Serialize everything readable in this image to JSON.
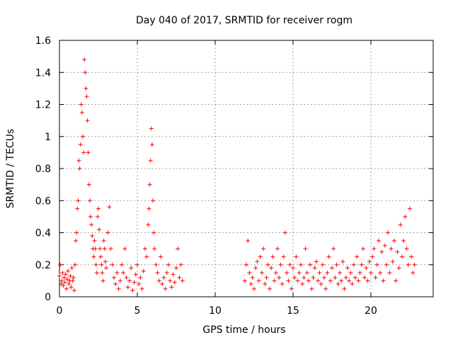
{
  "chart_data": {
    "type": "scatter",
    "title": "Day 040 of 2017, SRMTID for receiver rogm",
    "xlabel": "GPS time / hours",
    "ylabel": "SRMTID / TECUs",
    "xlim": [
      0,
      24
    ],
    "ylim": [
      0,
      1.6
    ],
    "x_ticks": [
      0,
      5,
      10,
      15,
      20
    ],
    "x_tick_labels": [
      "0",
      "5",
      "10",
      "15",
      "20"
    ],
    "y_ticks": [
      0,
      0.2,
      0.4,
      0.6,
      0.8,
      1.0,
      1.2,
      1.4,
      1.6
    ],
    "y_tick_labels": [
      "0",
      "0.2",
      "0.4",
      "0.6",
      "0.8",
      "1",
      "1.2",
      "1.4",
      "1.6"
    ],
    "grid": true,
    "marker": "+",
    "series": [
      {
        "name": "SRMTID",
        "color": "#ff0000",
        "points": [
          [
            0.0,
            0.13
          ],
          [
            0.05,
            0.2
          ],
          [
            0.1,
            0.08
          ],
          [
            0.15,
            0.1
          ],
          [
            0.2,
            0.15
          ],
          [
            0.25,
            0.07
          ],
          [
            0.3,
            0.12
          ],
          [
            0.35,
            0.09
          ],
          [
            0.4,
            0.14
          ],
          [
            0.45,
            0.05
          ],
          [
            0.5,
            0.11
          ],
          [
            0.55,
            0.16
          ],
          [
            0.6,
            0.08
          ],
          [
            0.65,
            0.1
          ],
          [
            0.7,
            0.13
          ],
          [
            0.75,
            0.06
          ],
          [
            0.8,
            0.18
          ],
          [
            0.85,
            0.1
          ],
          [
            0.9,
            0.12
          ],
          [
            0.95,
            0.04
          ],
          [
            1.0,
            0.2
          ],
          [
            1.05,
            0.35
          ],
          [
            1.1,
            0.4
          ],
          [
            1.15,
            0.55
          ],
          [
            1.2,
            0.6
          ],
          [
            1.25,
            0.85
          ],
          [
            1.3,
            0.8
          ],
          [
            1.35,
            0.95
          ],
          [
            1.4,
            1.2
          ],
          [
            1.45,
            1.15
          ],
          [
            1.5,
            1.0
          ],
          [
            1.55,
            0.9
          ],
          [
            1.6,
            1.48
          ],
          [
            1.65,
            1.4
          ],
          [
            1.7,
            1.3
          ],
          [
            1.75,
            1.25
          ],
          [
            1.8,
            1.1
          ],
          [
            1.85,
            0.9
          ],
          [
            1.9,
            0.7
          ],
          [
            1.95,
            0.6
          ],
          [
            2.0,
            0.5
          ],
          [
            2.05,
            0.45
          ],
          [
            2.1,
            0.38
          ],
          [
            2.15,
            0.3
          ],
          [
            2.2,
            0.25
          ],
          [
            2.25,
            0.35
          ],
          [
            2.3,
            0.3
          ],
          [
            2.35,
            0.2
          ],
          [
            2.4,
            0.15
          ],
          [
            2.45,
            0.5
          ],
          [
            2.5,
            0.55
          ],
          [
            2.55,
            0.42
          ],
          [
            2.6,
            0.3
          ],
          [
            2.65,
            0.25
          ],
          [
            2.7,
            0.2
          ],
          [
            2.75,
            0.15
          ],
          [
            2.8,
            0.1
          ],
          [
            2.85,
            0.35
          ],
          [
            2.9,
            0.3
          ],
          [
            2.95,
            0.22
          ],
          [
            3.0,
            0.18
          ],
          [
            3.1,
            0.4
          ],
          [
            3.2,
            0.56
          ],
          [
            3.3,
            0.3
          ],
          [
            3.4,
            0.2
          ],
          [
            3.5,
            0.12
          ],
          [
            3.6,
            0.08
          ],
          [
            3.7,
            0.15
          ],
          [
            3.8,
            0.05
          ],
          [
            3.9,
            0.1
          ],
          [
            4.0,
            0.2
          ],
          [
            4.1,
            0.15
          ],
          [
            4.2,
            0.3
          ],
          [
            4.3,
            0.12
          ],
          [
            4.4,
            0.06
          ],
          [
            4.5,
            0.1
          ],
          [
            4.6,
            0.18
          ],
          [
            4.7,
            0.04
          ],
          [
            4.8,
            0.09
          ],
          [
            4.9,
            0.14
          ],
          [
            5.0,
            0.2
          ],
          [
            5.1,
            0.08
          ],
          [
            5.2,
            0.12
          ],
          [
            5.3,
            0.05
          ],
          [
            5.4,
            0.16
          ],
          [
            5.5,
            0.3
          ],
          [
            5.6,
            0.25
          ],
          [
            5.7,
            0.45
          ],
          [
            5.75,
            0.55
          ],
          [
            5.8,
            0.7
          ],
          [
            5.85,
            0.85
          ],
          [
            5.9,
            1.05
          ],
          [
            5.95,
            0.95
          ],
          [
            6.0,
            0.6
          ],
          [
            6.05,
            0.4
          ],
          [
            6.1,
            0.3
          ],
          [
            6.2,
            0.2
          ],
          [
            6.3,
            0.15
          ],
          [
            6.4,
            0.1
          ],
          [
            6.5,
            0.25
          ],
          [
            6.6,
            0.08
          ],
          [
            6.7,
            0.12
          ],
          [
            6.8,
            0.05
          ],
          [
            6.9,
            0.15
          ],
          [
            7.0,
            0.2
          ],
          [
            7.1,
            0.1
          ],
          [
            7.2,
            0.06
          ],
          [
            7.3,
            0.14
          ],
          [
            7.4,
            0.09
          ],
          [
            7.5,
            0.18
          ],
          [
            7.6,
            0.3
          ],
          [
            7.7,
            0.12
          ],
          [
            7.8,
            0.2
          ],
          [
            7.9,
            0.1
          ],
          [
            11.9,
            0.1
          ],
          [
            12.0,
            0.2
          ],
          [
            12.1,
            0.35
          ],
          [
            12.2,
            0.15
          ],
          [
            12.3,
            0.08
          ],
          [
            12.4,
            0.12
          ],
          [
            12.5,
            0.05
          ],
          [
            12.6,
            0.18
          ],
          [
            12.7,
            0.22
          ],
          [
            12.8,
            0.1
          ],
          [
            12.9,
            0.25
          ],
          [
            13.0,
            0.15
          ],
          [
            13.1,
            0.3
          ],
          [
            13.2,
            0.08
          ],
          [
            13.3,
            0.12
          ],
          [
            13.4,
            0.2
          ],
          [
            13.5,
            0.05
          ],
          [
            13.6,
            0.18
          ],
          [
            13.7,
            0.25
          ],
          [
            13.8,
            0.1
          ],
          [
            13.9,
            0.15
          ],
          [
            14.0,
            0.3
          ],
          [
            14.1,
            0.12
          ],
          [
            14.2,
            0.2
          ],
          [
            14.3,
            0.08
          ],
          [
            14.4,
            0.25
          ],
          [
            14.5,
            0.4
          ],
          [
            14.6,
            0.15
          ],
          [
            14.7,
            0.1
          ],
          [
            14.8,
            0.2
          ],
          [
            14.9,
            0.05
          ],
          [
            15.0,
            0.18
          ],
          [
            15.1,
            0.12
          ],
          [
            15.2,
            0.25
          ],
          [
            15.3,
            0.1
          ],
          [
            15.4,
            0.15
          ],
          [
            15.5,
            0.2
          ],
          [
            15.6,
            0.08
          ],
          [
            15.7,
            0.12
          ],
          [
            15.8,
            0.3
          ],
          [
            15.9,
            0.15
          ],
          [
            16.0,
            0.1
          ],
          [
            16.1,
            0.2
          ],
          [
            16.2,
            0.05
          ],
          [
            16.3,
            0.12
          ],
          [
            16.4,
            0.18
          ],
          [
            16.5,
            0.22
          ],
          [
            16.6,
            0.1
          ],
          [
            16.7,
            0.15
          ],
          [
            16.8,
            0.08
          ],
          [
            16.9,
            0.2
          ],
          [
            17.0,
            0.12
          ],
          [
            17.1,
            0.05
          ],
          [
            17.2,
            0.15
          ],
          [
            17.3,
            0.25
          ],
          [
            17.4,
            0.1
          ],
          [
            17.5,
            0.18
          ],
          [
            17.6,
            0.3
          ],
          [
            17.7,
            0.12
          ],
          [
            17.8,
            0.2
          ],
          [
            17.9,
            0.08
          ],
          [
            18.0,
            0.15
          ],
          [
            18.1,
            0.1
          ],
          [
            18.2,
            0.22
          ],
          [
            18.3,
            0.05
          ],
          [
            18.4,
            0.12
          ],
          [
            18.5,
            0.18
          ],
          [
            18.6,
            0.1
          ],
          [
            18.7,
            0.15
          ],
          [
            18.8,
            0.08
          ],
          [
            18.9,
            0.2
          ],
          [
            19.0,
            0.12
          ],
          [
            19.1,
            0.25
          ],
          [
            19.2,
            0.1
          ],
          [
            19.3,
            0.15
          ],
          [
            19.4,
            0.2
          ],
          [
            19.5,
            0.3
          ],
          [
            19.6,
            0.12
          ],
          [
            19.7,
            0.18
          ],
          [
            19.8,
            0.1
          ],
          [
            19.9,
            0.22
          ],
          [
            20.0,
            0.15
          ],
          [
            20.1,
            0.25
          ],
          [
            20.2,
            0.3
          ],
          [
            20.3,
            0.12
          ],
          [
            20.4,
            0.2
          ],
          [
            20.5,
            0.35
          ],
          [
            20.6,
            0.15
          ],
          [
            20.7,
            0.28
          ],
          [
            20.8,
            0.1
          ],
          [
            20.9,
            0.32
          ],
          [
            21.0,
            0.2
          ],
          [
            21.1,
            0.4
          ],
          [
            21.2,
            0.15
          ],
          [
            21.3,
            0.3
          ],
          [
            21.4,
            0.22
          ],
          [
            21.5,
            0.35
          ],
          [
            21.6,
            0.1
          ],
          [
            21.7,
            0.28
          ],
          [
            21.8,
            0.18
          ],
          [
            21.9,
            0.45
          ],
          [
            22.0,
            0.25
          ],
          [
            22.1,
            0.35
          ],
          [
            22.2,
            0.5
          ],
          [
            22.3,
            0.3
          ],
          [
            22.4,
            0.2
          ],
          [
            22.5,
            0.55
          ],
          [
            22.6,
            0.25
          ],
          [
            22.7,
            0.15
          ],
          [
            22.8,
            0.2
          ]
        ]
      }
    ]
  }
}
